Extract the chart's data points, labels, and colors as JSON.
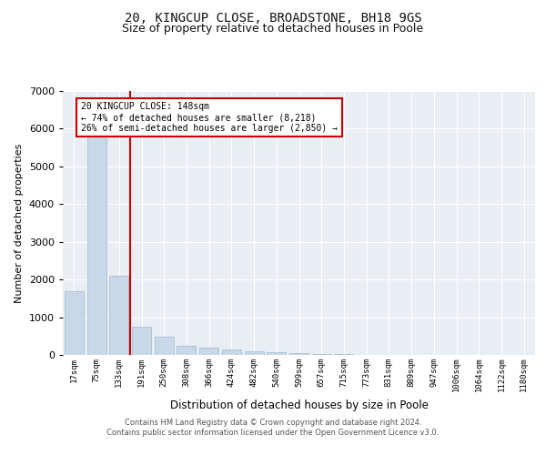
{
  "title": "20, KINGCUP CLOSE, BROADSTONE, BH18 9GS",
  "subtitle": "Size of property relative to detached houses in Poole",
  "xlabel": "Distribution of detached houses by size in Poole",
  "ylabel": "Number of detached properties",
  "categories": [
    "17sqm",
    "75sqm",
    "133sqm",
    "191sqm",
    "250sqm",
    "308sqm",
    "366sqm",
    "424sqm",
    "482sqm",
    "540sqm",
    "599sqm",
    "657sqm",
    "715sqm",
    "773sqm",
    "831sqm",
    "889sqm",
    "947sqm",
    "1006sqm",
    "1064sqm",
    "1122sqm",
    "1180sqm"
  ],
  "values": [
    1700,
    5800,
    2100,
    750,
    490,
    240,
    190,
    140,
    100,
    70,
    50,
    30,
    20,
    12,
    8,
    5,
    4,
    3,
    2,
    2,
    1
  ],
  "bar_color": "#c8d8e8",
  "bar_edge_color": "#a0b8cc",
  "red_line_x": 2.5,
  "annotation_text": "20 KINGCUP CLOSE: 148sqm\n← 74% of detached houses are smaller (8,218)\n26% of semi-detached houses are larger (2,850) →",
  "annotation_box_color": "#ffffff",
  "annotation_box_edge": "#cc0000",
  "ylim": [
    0,
    7000
  ],
  "yticks": [
    0,
    1000,
    2000,
    3000,
    4000,
    5000,
    6000,
    7000
  ],
  "footer_line1": "Contains HM Land Registry data © Crown copyright and database right 2024.",
  "footer_line2": "Contains public sector information licensed under the Open Government Licence v3.0.",
  "bg_color": "#ffffff",
  "plot_bg_color": "#e8eef4",
  "grid_color": "#ffffff",
  "title_fontsize": 10,
  "subtitle_fontsize": 9
}
